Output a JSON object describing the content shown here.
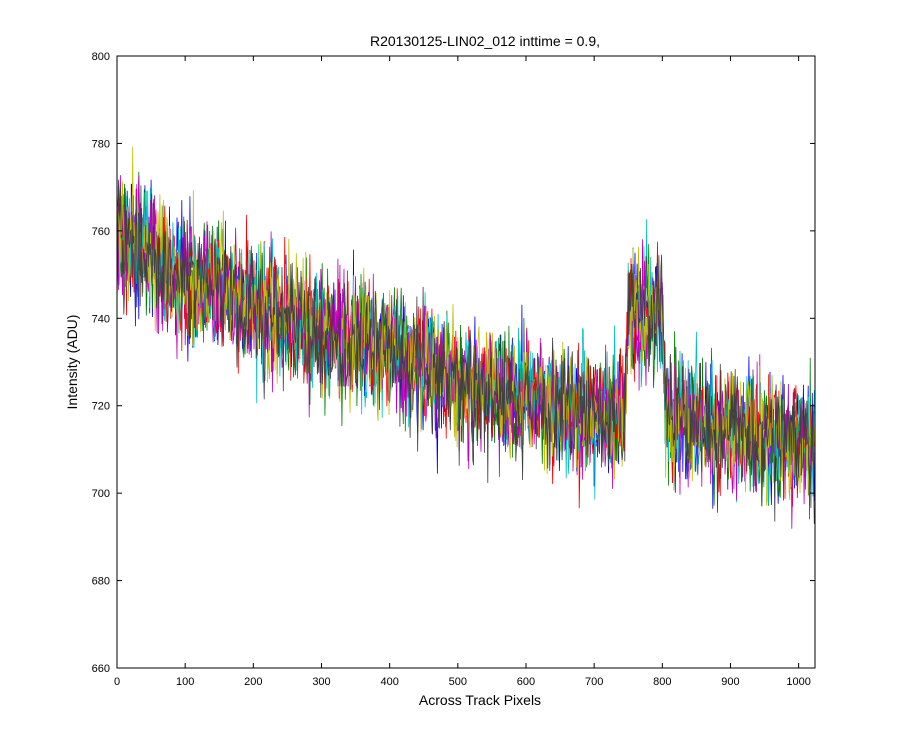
{
  "chart_data": {
    "type": "line",
    "title": "R20130125-LIN02_012 inttime = 0.9,",
    "xlabel": "Across Track Pixels",
    "ylabel": "Intensity (ADU)",
    "xlim": [
      0,
      1024
    ],
    "ylim": [
      660,
      800
    ],
    "xticks": [
      0,
      100,
      200,
      300,
      400,
      500,
      600,
      700,
      800,
      900,
      1000
    ],
    "yticks": [
      660,
      680,
      700,
      720,
      740,
      760,
      780,
      800
    ],
    "grid": false,
    "legend": "none",
    "n_points_per_series": 1024,
    "series_colors": [
      "#0000ff",
      "#008000",
      "#ff0000",
      "#00bfbf",
      "#bf00bf",
      "#bfbf00",
      "#404040"
    ],
    "profile": {
      "x": [
        0,
        30,
        60,
        100,
        150,
        200,
        250,
        300,
        400,
        500,
        600,
        700,
        745,
        750,
        800,
        805,
        850,
        900,
        950,
        1000,
        1024
      ],
      "y": [
        758,
        757,
        753,
        748,
        747,
        743,
        740,
        737,
        733,
        725,
        722,
        718,
        718,
        742,
        742,
        718,
        716,
        714,
        712,
        711,
        710
      ]
    },
    "noise_amplitude_adu": 11
  }
}
